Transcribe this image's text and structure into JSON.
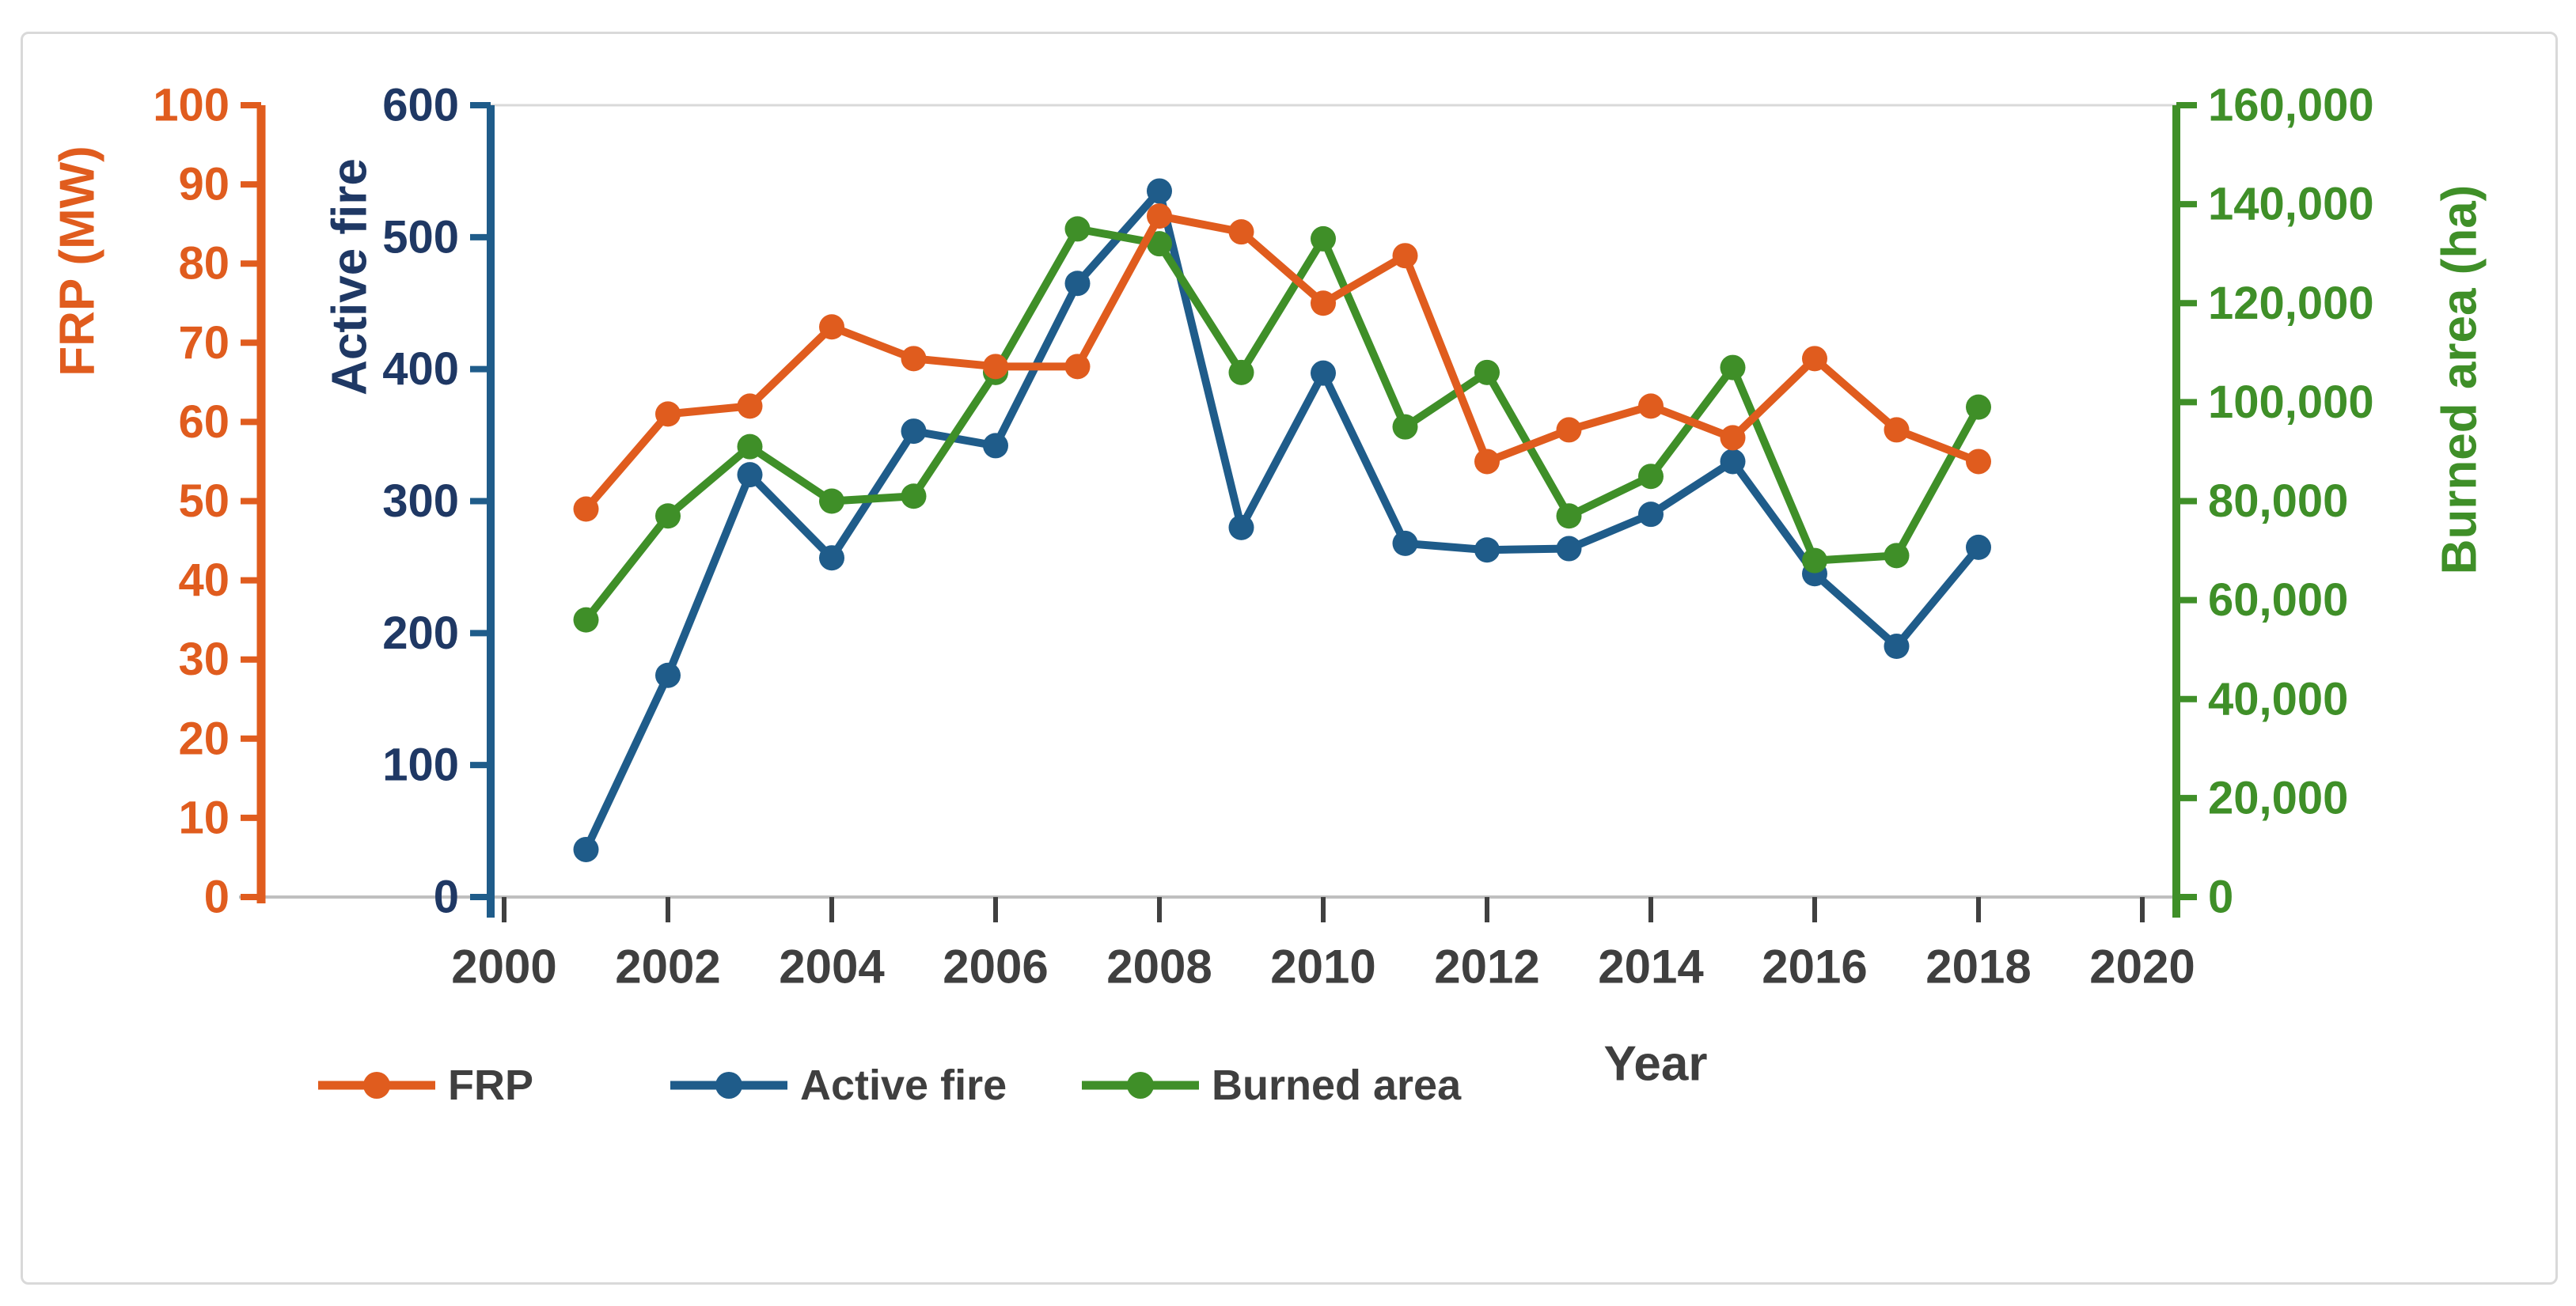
{
  "chart_data": {
    "type": "line",
    "title": "",
    "xlabel": "Year",
    "x": [
      2001,
      2002,
      2003,
      2004,
      2005,
      2006,
      2007,
      2008,
      2009,
      2010,
      2011,
      2012,
      2013,
      2014,
      2015,
      2016,
      2017,
      2018
    ],
    "x_axis": {
      "min": 2000,
      "max": 2020,
      "tick_step": 2
    },
    "axes": {
      "frp": {
        "label": "FRP (MW)",
        "min": 0,
        "max": 100,
        "step": 10,
        "color": "#e05c1e",
        "label_color": "#e05c1e",
        "side": "outer-left"
      },
      "active_fire": {
        "label": "Active fire",
        "min": 0,
        "max": 600,
        "step": 100,
        "color": "#1f5c8a",
        "label_color": "#1f3864",
        "side": "inner-left"
      },
      "burned_area": {
        "label": "Burned area (ha)",
        "min": 0,
        "max": 160000,
        "step": 20000,
        "color": "#3f8f28",
        "label_color": "#3f8f28",
        "side": "right"
      }
    },
    "series": [
      {
        "name": "FRP",
        "axis": "frp",
        "color": "#e05c1e",
        "values": [
          49,
          61,
          62,
          72,
          68,
          67,
          67,
          86,
          84,
          75,
          81,
          55,
          59,
          62,
          58,
          68,
          59,
          55
        ]
      },
      {
        "name": "Active fire",
        "axis": "active_fire",
        "color": "#1f5c8a",
        "values": [
          36,
          168,
          320,
          257,
          353,
          342,
          465,
          535,
          280,
          397,
          268,
          263,
          264,
          290,
          330,
          245,
          190,
          265
        ]
      },
      {
        "name": "Burned area",
        "axis": "burned_area",
        "color": "#3f8f28",
        "values": [
          56000,
          77000,
          91000,
          80000,
          81000,
          106000,
          135000,
          132000,
          106000,
          133000,
          95000,
          106000,
          77000,
          85000,
          107000,
          68000,
          69000,
          99000
        ]
      }
    ],
    "legend": {
      "position": "bottom",
      "items": [
        "FRP",
        "Active fire",
        "Burned area"
      ]
    },
    "grid": false
  }
}
